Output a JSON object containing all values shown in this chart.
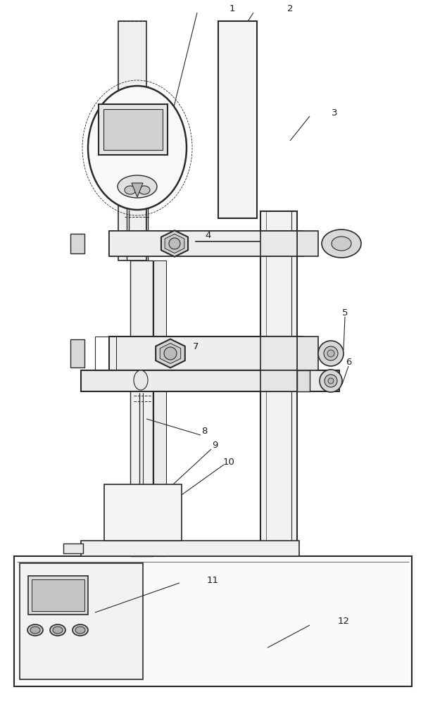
{
  "bg_color": "#ffffff",
  "line_color": "#2a2a2a",
  "label_color": "#1a1a1a",
  "fig_width": 6.08,
  "fig_height": 10.0,
  "dpi": 100
}
